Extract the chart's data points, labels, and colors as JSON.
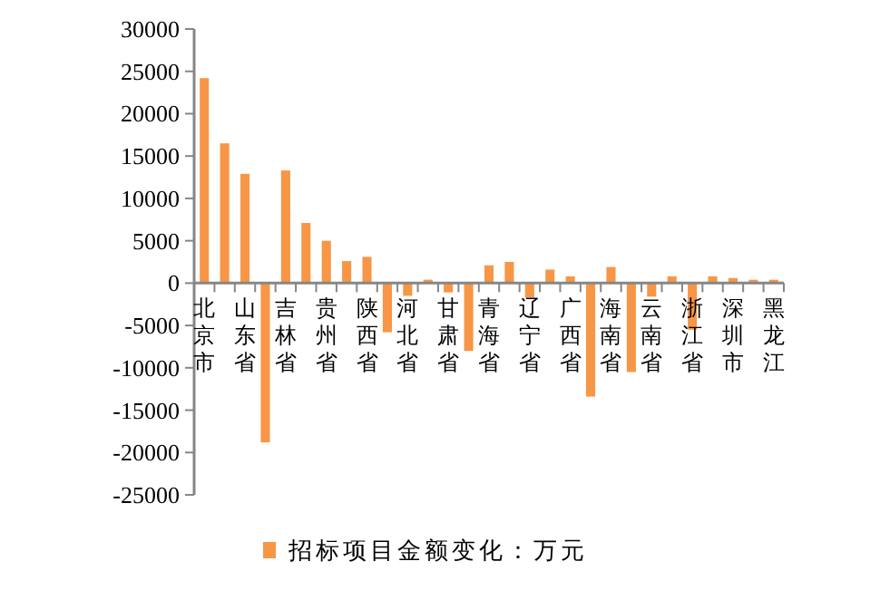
{
  "chart_data": {
    "type": "bar",
    "categories": [
      "北京市",
      null,
      "山东省",
      null,
      "吉林省",
      null,
      "贵州省",
      null,
      "陕西省",
      null,
      "河北省",
      null,
      "甘肃省",
      null,
      "青海省",
      null,
      "辽宁省",
      null,
      "广西省",
      null,
      "海南省",
      null,
      "云南省",
      null,
      "浙江省",
      null,
      "深圳市",
      null,
      "黑龙江"
    ],
    "series": [
      {
        "name": "招标项目金额变化：万元",
        "color": "#f79646",
        "values": [
          24200,
          16500,
          12900,
          -18800,
          13300,
          7100,
          5000,
          2600,
          3100,
          -5800,
          -1500,
          400,
          -1100,
          -8000,
          2100,
          2500,
          -1700,
          1600,
          800,
          -13400,
          1900,
          -10500,
          -1600,
          800,
          -5500,
          800,
          600,
          400,
          400
        ]
      }
    ],
    "ylim": [
      -25000,
      30000
    ],
    "yticks": [
      -25000,
      -20000,
      -15000,
      -10000,
      -5000,
      0,
      5000,
      10000,
      15000,
      20000,
      25000,
      30000
    ],
    "legend": "bottom"
  }
}
